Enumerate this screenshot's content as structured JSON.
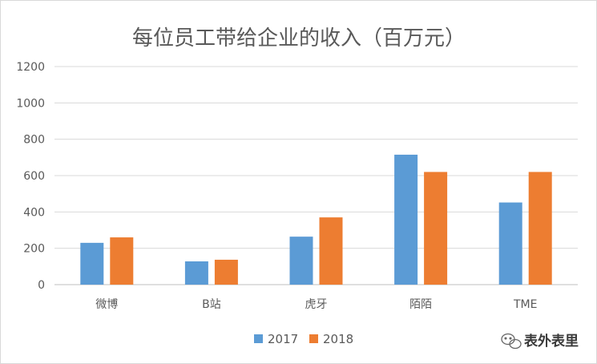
{
  "chart_data": {
    "type": "bar",
    "title": "每位员工带给企业的收入（百万元）",
    "categories": [
      "微博",
      "B站",
      "虎牙",
      "陌陌",
      "TME"
    ],
    "series": [
      {
        "name": "2017",
        "color": "#5b9bd5",
        "values": [
          230,
          128,
          264,
          715,
          452
        ]
      },
      {
        "name": "2018",
        "color": "#ed7d31",
        "values": [
          260,
          137,
          370,
          620,
          620
        ]
      }
    ],
    "y_ticks": [
      "0",
      "200",
      "400",
      "600",
      "800",
      "1000",
      "1200"
    ],
    "ylim": [
      0,
      1200
    ],
    "grid": true,
    "legend_position": "bottom"
  },
  "watermark": {
    "text": "表外表里",
    "icon": "wechat-icon"
  }
}
